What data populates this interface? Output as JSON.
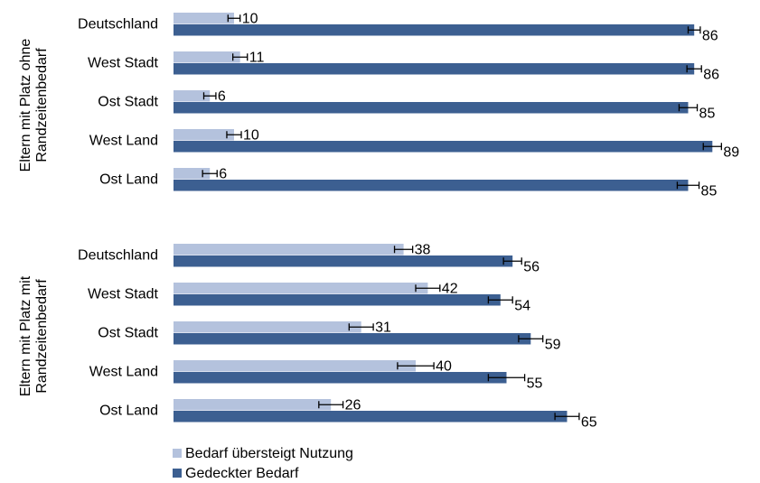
{
  "chart_data": {
    "type": "bar",
    "orientation": "horizontal",
    "xlim": [
      0,
      100
    ],
    "legend_position": "bottom-left",
    "series": [
      {
        "name": "Bedarf übersteigt Nutzung",
        "color": "#b4c2dd"
      },
      {
        "name": "Gedeckter Bedarf",
        "color": "#3c5f91"
      }
    ],
    "groups": [
      {
        "label_lines": [
          "Eltern mit Platz ohne",
          "Randzeitenbedarf"
        ],
        "categories": [
          {
            "name": "Deutschland",
            "values": [
              10,
              86
            ],
            "errors": [
              1,
              1
            ]
          },
          {
            "name": "West Stadt",
            "values": [
              11,
              86
            ],
            "errors": [
              1.2,
              1.2
            ]
          },
          {
            "name": "Ost Stadt",
            "values": [
              6,
              85
            ],
            "errors": [
              1,
              1.5
            ]
          },
          {
            "name": "West Land",
            "values": [
              10,
              89
            ],
            "errors": [
              1.2,
              1.5
            ]
          },
          {
            "name": "Ost Land",
            "values": [
              6,
              85
            ],
            "errors": [
              1.2,
              1.8
            ]
          }
        ]
      },
      {
        "label_lines": [
          "Eltern mit Platz mit",
          "Randzeitenbedarf"
        ],
        "categories": [
          {
            "name": "Deutschland",
            "values": [
              38,
              56
            ],
            "errors": [
              1.5,
              1.5
            ]
          },
          {
            "name": "West Stadt",
            "values": [
              42,
              54
            ],
            "errors": [
              2,
              2
            ]
          },
          {
            "name": "Ost Stadt",
            "values": [
              31,
              59
            ],
            "errors": [
              2,
              2
            ]
          },
          {
            "name": "West Land",
            "values": [
              40,
              55
            ],
            "errors": [
              3,
              3
            ]
          },
          {
            "name": "Ost Land",
            "values": [
              26,
              65
            ],
            "errors": [
              2,
              2
            ]
          }
        ]
      }
    ]
  }
}
